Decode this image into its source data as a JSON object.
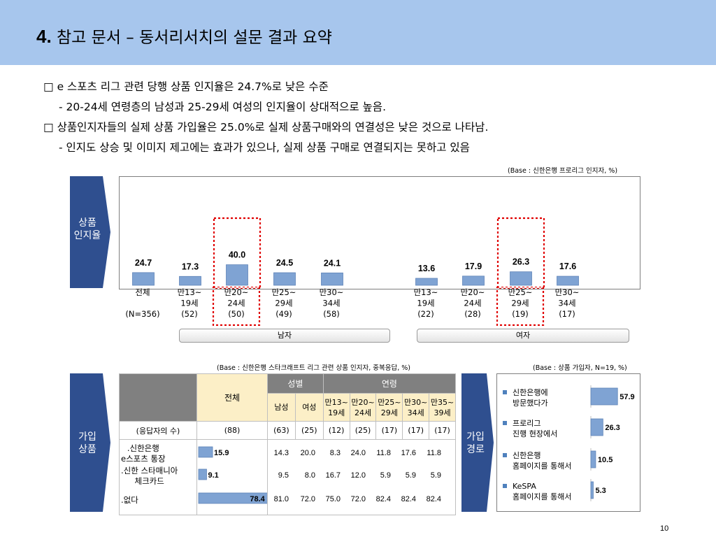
{
  "header": {
    "number": "4.",
    "title": "참고 문서 – 동서리서치의 설문 결과 요약"
  },
  "bullets": [
    "□ e 스포츠 리그 관련 당행 상품 인지율은 24.7%로 낮은 수준",
    "- 20-24세 연령층의 남성과 25-29세 여성의 인지율이 상대적으로 높음.",
    "□ 상품인지자들의 실제 상품 가입율은 25.0%로 실제 상품구매와의 연결성은 낮은 것으로 나타남.",
    "-  인지도 상승 및 이미지 제고에는 효과가 있으나, 실제 상품 구매로 연결되지는 못하고 있음"
  ],
  "tags": {
    "awareness": [
      "상품",
      "인지율"
    ],
    "join_product": [
      "가입",
      "상품"
    ],
    "join_route": [
      "가입",
      "경로"
    ]
  },
  "base_notes": {
    "awareness": "(Base : 신한은행 프로리그 인지자, %)",
    "products": "(Base : 신한은행 스타크래프트 리그 관련 상품 인지자, 중복응답, %)",
    "route": "(Base : 상품 가입자, N=19, %)"
  },
  "sex_labels": {
    "male": "남자",
    "female": "여자"
  },
  "colors": {
    "header_bg": "#a7c6ed",
    "bar": "#7fa3d3",
    "tag": "#2f4f8f",
    "highlight": "#e00000",
    "table_head": "#fcefc7"
  },
  "chart_data": [
    {
      "type": "bar",
      "title": "상품 인지율",
      "categories": [
        [
          "전체",
          "",
          "(N=356)"
        ],
        [
          "만13~",
          "19세",
          "(52)"
        ],
        [
          "만20~",
          "24세",
          "(50)"
        ],
        [
          "만25~",
          "29세",
          "(49)"
        ],
        [
          "만30~",
          "34세",
          "(58)"
        ],
        [
          "만13~",
          "19세",
          "(22)"
        ],
        [
          "만20~",
          "24세",
          "(28)"
        ],
        [
          "만25~",
          "29세",
          "(19)"
        ],
        [
          "만30~",
          "34세",
          "(17)"
        ]
      ],
      "groups": [
        "전체",
        "남자",
        "남자",
        "남자",
        "남자",
        "여자",
        "여자",
        "여자",
        "여자"
      ],
      "values": [
        24.7,
        17.3,
        40.0,
        24.5,
        24.1,
        13.6,
        17.9,
        26.3,
        17.6
      ],
      "value_labels": [
        "24.7",
        "17.3",
        "40.0",
        "24.5",
        "24.1",
        "13.6",
        "17.9",
        "26.3",
        "17.6"
      ],
      "highlighted": [
        2,
        7
      ],
      "ylim": [
        0,
        100
      ]
    },
    {
      "type": "table",
      "title": "가입 상품",
      "header_total": "전체",
      "header_sex": "성별",
      "header_age": "연령",
      "sub_headers": [
        [
          "남성"
        ],
        [
          "여성"
        ],
        [
          "만13~",
          "19세"
        ],
        [
          "만20~",
          "24세"
        ],
        [
          "만25~",
          "29세"
        ],
        [
          "만30~",
          "34세"
        ],
        [
          "만35~",
          "39세"
        ]
      ],
      "n_row": {
        "label": "(응답자의 수)",
        "total": "(88)",
        "cols": [
          "(63)",
          "(25)",
          "(12)",
          "(25)",
          "(17)",
          "(17)",
          "(17)"
        ]
      },
      "rows": [
        {
          "label": [
            ".신한은행",
            " e스포츠 통장"
          ],
          "total": 15.9,
          "total_label": "15.9",
          "cols": [
            "14.3",
            "20.0",
            "8.3",
            "24.0",
            "11.8",
            "17.6",
            "11.8"
          ]
        },
        {
          "label": [
            ".신한 스타매니아",
            " 체크카드"
          ],
          "total": 9.1,
          "total_label": "9.1",
          "cols": [
            "9.5",
            "8.0",
            "16.7",
            "12.0",
            "5.9",
            "5.9",
            "5.9"
          ]
        },
        {
          "label": [
            ".없다"
          ],
          "total": 78.4,
          "total_label": "78.4",
          "cols": [
            "81.0",
            "72.0",
            "75.0",
            "72.0",
            "82.4",
            "82.4",
            "82.4"
          ]
        }
      ]
    },
    {
      "type": "bar",
      "orientation": "horizontal",
      "title": "가입 경로",
      "categories": [
        [
          "신한은행에",
          "방문했다가"
        ],
        [
          "프로리그",
          "진행 현장에서"
        ],
        [
          "신한은행",
          "홈페이지를 통해서"
        ],
        [
          "KeSPA",
          "홈페이지를 통해서"
        ]
      ],
      "values": [
        57.9,
        26.3,
        10.5,
        5.3
      ],
      "value_labels": [
        "57.9",
        "26.3",
        "10.5",
        "5.3"
      ]
    }
  ],
  "page_number": "10"
}
